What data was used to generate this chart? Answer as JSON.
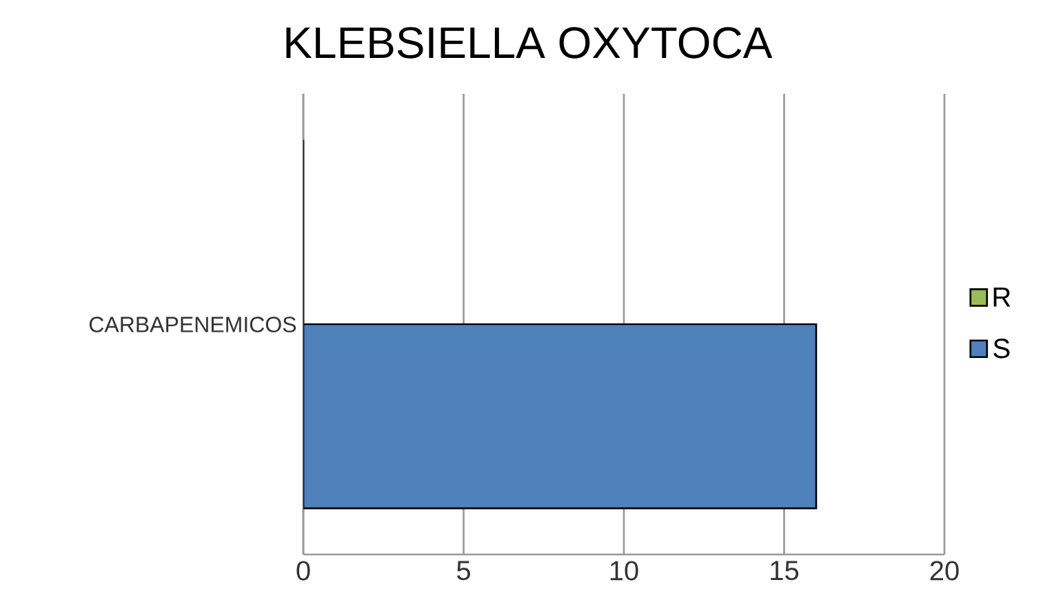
{
  "chart_data": {
    "type": "bar",
    "title": "KLEBSIELLA OXYTOCA",
    "orientation": "horizontal",
    "categories": [
      "CARBAPENEMICOS"
    ],
    "series": [
      {
        "name": "S",
        "color": "#4f81bd",
        "values": [
          16
        ]
      },
      {
        "name": "R",
        "color": "#9bbb59",
        "values": [
          0
        ]
      }
    ],
    "xlim": [
      0,
      20
    ],
    "xticks": [
      0,
      5,
      10,
      15,
      20
    ],
    "grid": "x",
    "legend": "right"
  }
}
